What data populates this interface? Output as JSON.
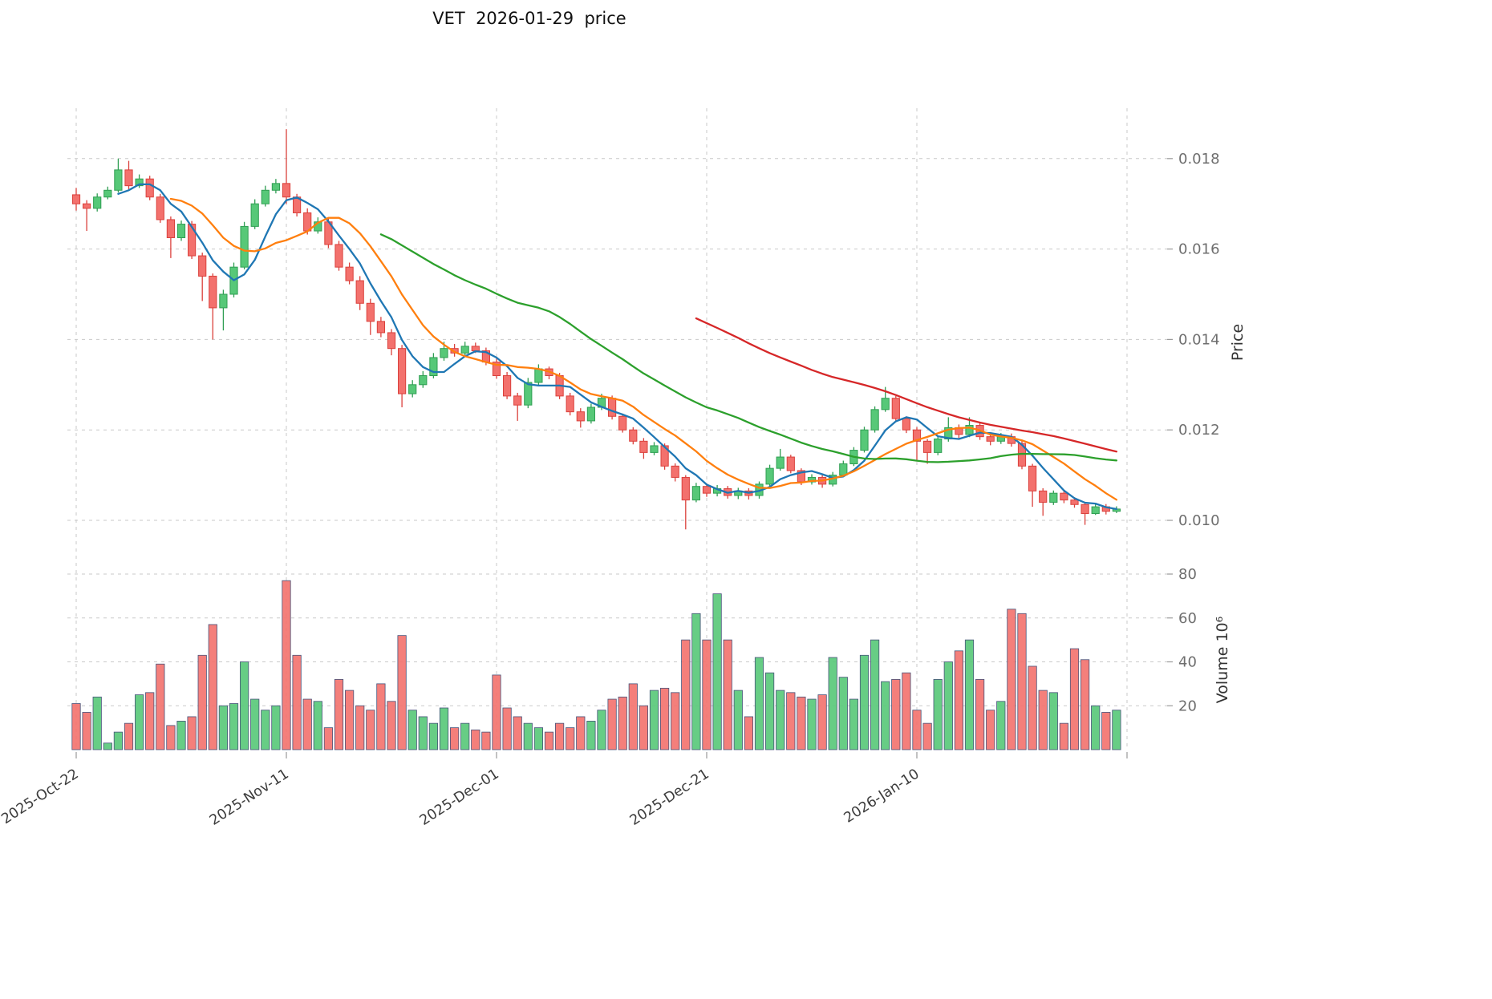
{
  "title": "VET  2026-01-29  price",
  "axes": {
    "price_axis_label": "Price",
    "volume_axis_label": "Volume 10⁶",
    "price_tick_labels": [
      "0.010",
      "0.012",
      "0.014",
      "0.016",
      "0.018"
    ],
    "price_tick_values": [
      0.01,
      0.012,
      0.014,
      0.016,
      0.018
    ],
    "volume_tick_labels": [
      "20",
      "40",
      "60",
      "80"
    ],
    "volume_tick_values": [
      20,
      40,
      60,
      80
    ],
    "x_tick_labels": [
      "2025-Oct-22",
      "2025-Nov-11",
      "2025-Dec-01",
      "2025-Dec-21",
      "2026-Jan-10"
    ],
    "x_tick_indices": [
      0,
      20,
      40,
      60,
      80
    ]
  },
  "colors": {
    "up": "#57c878",
    "up_edge": "#2f9e52",
    "down": "#f3716d",
    "down_edge": "#da413c",
    "ma_colors": [
      "#1f77b4",
      "#ff7f0e",
      "#2ca02c",
      "#d62728"
    ],
    "grid": "#c9c9c9",
    "tick_text": "#6e6e6e",
    "date_text": "#3c3c3c",
    "volume_bar_edge": "#47537a",
    "background": "#ffffff"
  },
  "chart_data": {
    "type": "candlestick",
    "symbol": "VET",
    "as_of_date": "2026-01-29",
    "start_date": "2025-10-22",
    "days": 100,
    "ylim_price": [
      0.0095,
      0.019
    ],
    "ylim_volume": [
      0,
      80
    ],
    "moving_average_windows": [
      5,
      10,
      30,
      60
    ],
    "open": [
      0.0172,
      0.017,
      0.0169,
      0.01715,
      0.0173,
      0.01775,
      0.0174,
      0.01755,
      0.01715,
      0.01665,
      0.01625,
      0.01655,
      0.01585,
      0.0154,
      0.0147,
      0.015,
      0.0156,
      0.0165,
      0.017,
      0.0173,
      0.01745,
      0.01715,
      0.0168,
      0.0164,
      0.0166,
      0.0161,
      0.0156,
      0.0153,
      0.0148,
      0.0144,
      0.01415,
      0.0138,
      0.0128,
      0.013,
      0.0132,
      0.0136,
      0.0138,
      0.0137,
      0.01385,
      0.01375,
      0.0135,
      0.0132,
      0.01275,
      0.01255,
      0.01305,
      0.01335,
      0.0132,
      0.01275,
      0.0124,
      0.0122,
      0.0125,
      0.0127,
      0.0123,
      0.012,
      0.01175,
      0.0115,
      0.01165,
      0.0112,
      0.01095,
      0.01045,
      0.01075,
      0.0106,
      0.0107,
      0.01055,
      0.01065,
      0.01055,
      0.0108,
      0.01115,
      0.0114,
      0.0111,
      0.01085,
      0.01095,
      0.0108,
      0.011,
      0.01125,
      0.01155,
      0.012,
      0.01245,
      0.0127,
      0.01225,
      0.012,
      0.01175,
      0.0115,
      0.0118,
      0.01205,
      0.0119,
      0.0121,
      0.01185,
      0.01175,
      0.01185,
      0.0117,
      0.0112,
      0.01065,
      0.0104,
      0.0106,
      0.01045,
      0.01035,
      0.01015,
      0.0103,
      0.0102
    ],
    "high": [
      0.01735,
      0.01708,
      0.01723,
      0.01738,
      0.018,
      0.01795,
      0.01765,
      0.01762,
      0.01722,
      0.01672,
      0.01663,
      0.01662,
      0.01592,
      0.01546,
      0.0151,
      0.0157,
      0.0166,
      0.0171,
      0.0174,
      0.01755,
      0.01865,
      0.01722,
      0.0169,
      0.0167,
      0.01668,
      0.01618,
      0.0157,
      0.0154,
      0.0149,
      0.0145,
      0.01423,
      0.01388,
      0.0131,
      0.0133,
      0.0137,
      0.01395,
      0.0139,
      0.01395,
      0.01393,
      0.01382,
      0.01358,
      0.01328,
      0.01282,
      0.01315,
      0.01345,
      0.0134,
      0.01326,
      0.01282,
      0.01248,
      0.01258,
      0.0128,
      0.01276,
      0.01236,
      0.01206,
      0.01182,
      0.01173,
      0.0117,
      0.01126,
      0.011,
      0.01083,
      0.01082,
      0.01078,
      0.01076,
      0.01072,
      0.01071,
      0.01086,
      0.01123,
      0.01158,
      0.01145,
      0.01115,
      0.01102,
      0.01101,
      0.01107,
      0.01132,
      0.01162,
      0.01207,
      0.01252,
      0.01295,
      0.01275,
      0.0123,
      0.01206,
      0.0118,
      0.01186,
      0.01228,
      0.01212,
      0.01228,
      0.01215,
      0.01192,
      0.01193,
      0.01192,
      0.01176,
      0.01125,
      0.01071,
      0.01066,
      0.01066,
      0.01051,
      0.01041,
      0.01036,
      0.01036,
      0.01031
    ],
    "low": [
      0.01685,
      0.0164,
      0.01683,
      0.0171,
      0.01725,
      0.01732,
      0.01735,
      0.01708,
      0.01658,
      0.0158,
      0.01618,
      0.01578,
      0.01485,
      0.014,
      0.0142,
      0.01493,
      0.01555,
      0.01644,
      0.01694,
      0.01723,
      0.017,
      0.01672,
      0.01632,
      0.01634,
      0.01602,
      0.01552,
      0.01522,
      0.01465,
      0.0141,
      0.01405,
      0.01365,
      0.0125,
      0.01272,
      0.01293,
      0.01314,
      0.01353,
      0.01362,
      0.01364,
      0.0137,
      0.01343,
      0.01313,
      0.01268,
      0.0122,
      0.01248,
      0.01298,
      0.01312,
      0.01268,
      0.01232,
      0.01205,
      0.01214,
      0.01244,
      0.01223,
      0.01194,
      0.01168,
      0.01136,
      0.01144,
      0.01112,
      0.01086,
      0.0098,
      0.0104,
      0.01052,
      0.01053,
      0.01048,
      0.01047,
      0.01046,
      0.01048,
      0.01075,
      0.0111,
      0.01104,
      0.01078,
      0.01079,
      0.01072,
      0.01075,
      0.01096,
      0.0112,
      0.0115,
      0.01194,
      0.0124,
      0.01218,
      0.01193,
      0.01133,
      0.01125,
      0.01144,
      0.01174,
      0.01182,
      0.01184,
      0.01178,
      0.01166,
      0.01169,
      0.01163,
      0.01113,
      0.0103,
      0.0101,
      0.01034,
      0.01038,
      0.01028,
      0.0099,
      0.01012,
      0.01013,
      0.01016
    ],
    "close": [
      0.017,
      0.0169,
      0.01715,
      0.0173,
      0.01775,
      0.0174,
      0.01755,
      0.01715,
      0.01665,
      0.01625,
      0.01655,
      0.01585,
      0.0154,
      0.0147,
      0.015,
      0.0156,
      0.0165,
      0.017,
      0.0173,
      0.01745,
      0.01715,
      0.0168,
      0.0164,
      0.0166,
      0.0161,
      0.0156,
      0.0153,
      0.0148,
      0.0144,
      0.01415,
      0.0138,
      0.0128,
      0.013,
      0.0132,
      0.0136,
      0.0138,
      0.0137,
      0.01385,
      0.01375,
      0.0135,
      0.0132,
      0.01275,
      0.01255,
      0.01305,
      0.01335,
      0.0132,
      0.01275,
      0.0124,
      0.0122,
      0.0125,
      0.0127,
      0.0123,
      0.012,
      0.01175,
      0.0115,
      0.01165,
      0.0112,
      0.01095,
      0.01045,
      0.01075,
      0.0106,
      0.0107,
      0.01055,
      0.01065,
      0.01055,
      0.0108,
      0.01115,
      0.0114,
      0.0111,
      0.01085,
      0.01095,
      0.0108,
      0.011,
      0.01125,
      0.01155,
      0.012,
      0.01245,
      0.0127,
      0.01225,
      0.012,
      0.01175,
      0.0115,
      0.0118,
      0.01205,
      0.0119,
      0.0121,
      0.01185,
      0.01175,
      0.01185,
      0.0117,
      0.0112,
      0.01065,
      0.0104,
      0.0106,
      0.01045,
      0.01035,
      0.01015,
      0.0103,
      0.0102,
      0.01025
    ],
    "volume_millions": [
      21,
      17,
      24,
      3,
      8,
      12,
      25,
      26,
      39,
      11,
      13,
      15,
      43,
      57,
      20,
      21,
      40,
      23,
      18,
      20,
      77,
      43,
      23,
      22,
      10,
      32,
      27,
      20,
      18,
      30,
      22,
      52,
      18,
      15,
      12,
      19,
      10,
      12,
      9,
      8,
      34,
      19,
      15,
      12,
      10,
      8,
      12,
      10,
      15,
      13,
      18,
      23,
      24,
      30,
      20,
      27,
      28,
      26,
      50,
      62,
      50,
      71,
      50,
      27,
      15,
      42,
      35,
      27,
      26,
      24,
      23,
      25,
      42,
      33,
      23,
      43,
      50,
      31,
      32,
      35,
      18,
      12,
      32,
      40,
      45,
      50,
      32,
      18,
      22,
      64,
      62,
      38,
      27,
      26,
      12,
      46,
      41,
      20,
      17,
      18
    ]
  }
}
